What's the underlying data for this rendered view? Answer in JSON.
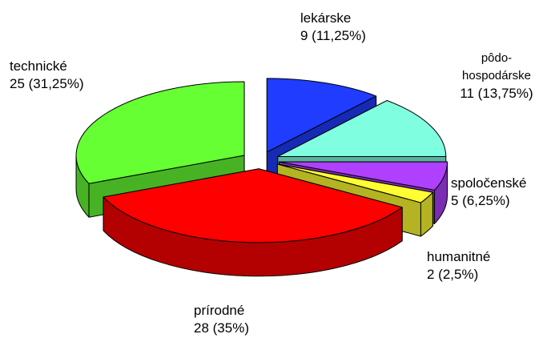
{
  "chart_data": {
    "type": "pie3d",
    "categories": [
      "lekárske",
      "pôdo-hospodárske",
      "spoločenské",
      "humanitné",
      "prírodné",
      "technické"
    ],
    "values": [
      9,
      11,
      5,
      2,
      28,
      25
    ],
    "value_labels": [
      "9 (11,25%)",
      "11 (13,75%)",
      "5 (6,25%)",
      "2 (2,5%)",
      "28 (35%)",
      "25 (31,25%)"
    ],
    "colors": [
      "#1f3cff",
      "#80ffe0",
      "#b040ff",
      "#ffff33",
      "#ff0000",
      "#66ff33"
    ]
  }
}
